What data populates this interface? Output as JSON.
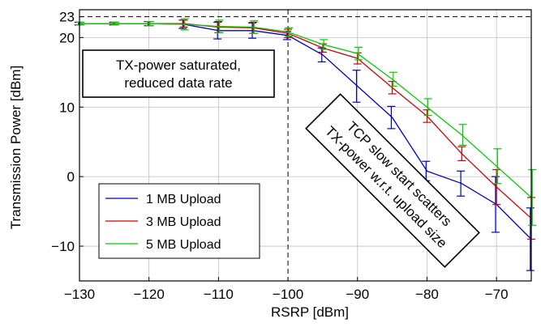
{
  "chart_data": {
    "type": "line",
    "xlabel": "RSRP [dBm]",
    "ylabel": "Transmission Power [dBm]",
    "xlim": [
      -130,
      -65
    ],
    "ylim": [
      -15,
      24
    ],
    "grid": true,
    "xticks": [
      -130,
      -120,
      -110,
      -100,
      -90,
      -80,
      -70
    ],
    "xtick_labels": [
      "−130",
      "−120",
      "−110",
      "−100",
      "−90",
      "−80",
      "−70"
    ],
    "yticks": [
      -10,
      0,
      10,
      20,
      23
    ],
    "ytick_labels": [
      "−10",
      "0",
      "10",
      "20",
      "23"
    ],
    "reference_lines": {
      "horizontal_y": 23,
      "vertical_x": -100
    },
    "legend_placement": "bottom-left",
    "series": [
      {
        "name": "1 MB Upload",
        "color": "#0000cc",
        "x": [
          -130,
          -125,
          -120,
          -115,
          -110,
          -105,
          -100,
          -95,
          -90,
          -85,
          -80,
          -75,
          -70,
          -65
        ],
        "y": [
          22,
          22,
          22,
          21.9,
          21,
          21,
          20.3,
          17.5,
          13,
          8.5,
          0.8,
          -1,
          -4,
          -9
        ],
        "err": [
          0.2,
          0.2,
          0.3,
          0.6,
          1.2,
          1.1,
          0.6,
          1.0,
          2.3,
          1.6,
          1.4,
          1.8,
          4.0,
          4.5
        ]
      },
      {
        "name": "3 MB Upload",
        "color": "#d40000",
        "x": [
          -130,
          -125,
          -120,
          -115,
          -110,
          -105,
          -100,
          -95,
          -90,
          -85,
          -80,
          -75,
          -70,
          -65
        ],
        "y": [
          22,
          22,
          22,
          22,
          21.5,
          21.4,
          20.6,
          18.5,
          17,
          12.8,
          8.7,
          3.3,
          -1.5,
          -6
        ],
        "err": [
          0.2,
          0.2,
          0.3,
          0.5,
          0.8,
          0.8,
          0.6,
          0.6,
          0.8,
          0.9,
          0.9,
          1.0,
          2.5,
          3.0
        ]
      },
      {
        "name": "5 MB Upload",
        "color": "#00cc00",
        "x": [
          -130,
          -125,
          -120,
          -115,
          -110,
          -105,
          -100,
          -95,
          -90,
          -85,
          -80,
          -75,
          -70,
          -65
        ],
        "y": [
          22,
          22,
          22,
          21.9,
          21.6,
          21.5,
          20.8,
          19,
          17.7,
          14,
          10,
          6,
          1.5,
          -3
        ],
        "err": [
          0.2,
          0.2,
          0.3,
          0.8,
          0.9,
          0.9,
          0.6,
          0.7,
          0.9,
          1.0,
          1.2,
          1.5,
          2.5,
          4.0
        ]
      }
    ],
    "annotations": [
      {
        "id": "saturated",
        "lines": [
          "TX-power saturated,",
          "reduced data rate"
        ]
      },
      {
        "id": "slow-start",
        "lines": [
          "TCP slow start scatters",
          "TX-power w.r.t. upload size"
        ]
      }
    ]
  }
}
